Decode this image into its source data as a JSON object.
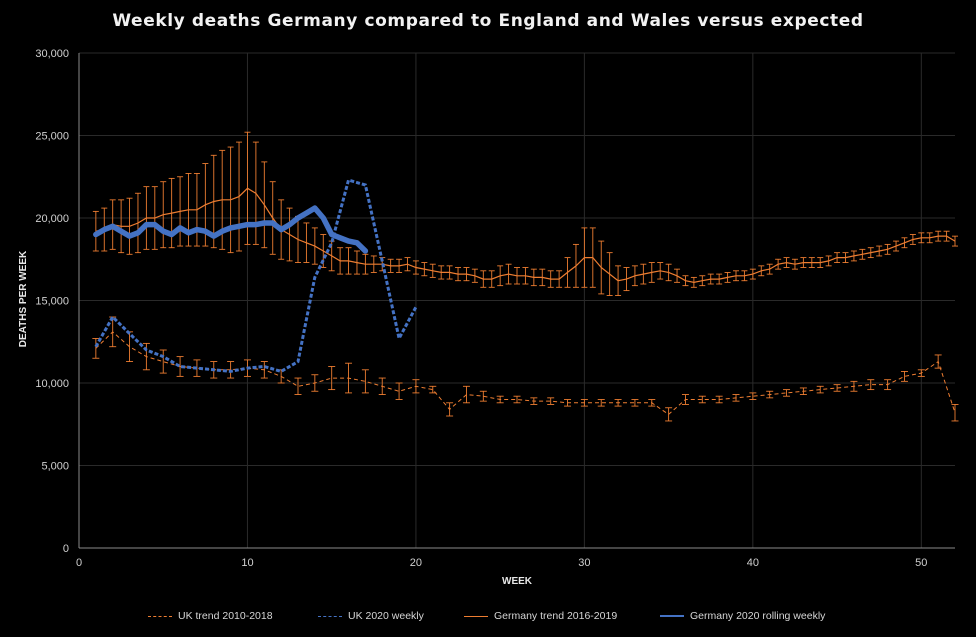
{
  "chart_data": {
    "type": "line",
    "title": "Weekly deaths Germany compared to England and Wales versus expected",
    "xlabel": "WEEK",
    "ylabel": "DEATHS PER WEEK",
    "xlim": [
      0,
      52
    ],
    "ylim": [
      0,
      30000
    ],
    "x_ticks": [
      0,
      10,
      20,
      30,
      40,
      50
    ],
    "y_ticks": [
      0,
      5000,
      10000,
      15000,
      20000,
      25000,
      30000
    ],
    "y_tick_labels": [
      "0",
      "5,000",
      "10,000",
      "15,000",
      "20,000",
      "25,000",
      "30,000"
    ],
    "grid": true,
    "legend_position": "bottom",
    "colors": {
      "uk_trend": "#ed7d31",
      "uk_2020": "#4472c4",
      "germany_trend": "#ed7d31",
      "germany_2020": "#4472c4",
      "grid": "#2a2a2a",
      "axis": "#8a8a8a"
    },
    "series": [
      {
        "name": "UK trend 2010-2018",
        "style": "dashed",
        "x": [
          1,
          2,
          3,
          4,
          5,
          6,
          7,
          8,
          9,
          10,
          11,
          12,
          13,
          14,
          15,
          16,
          17,
          18,
          19,
          20,
          21,
          22,
          23,
          24,
          25,
          26,
          27,
          28,
          29,
          30,
          31,
          32,
          33,
          34,
          35,
          36,
          37,
          38,
          39,
          40,
          41,
          42,
          43,
          44,
          45,
          46,
          47,
          48,
          49,
          50,
          51,
          52
        ],
        "values": [
          12100,
          13100,
          12200,
          11600,
          11300,
          11000,
          10900,
          10800,
          10800,
          10900,
          10800,
          10400,
          9800,
          10000,
          10300,
          10300,
          10100,
          9800,
          9500,
          9800,
          9600,
          8400,
          9300,
          9200,
          9000,
          9000,
          8900,
          8900,
          8800,
          8800,
          8800,
          8800,
          8800,
          8800,
          8100,
          9000,
          9000,
          9000,
          9100,
          9200,
          9300,
          9400,
          9500,
          9600,
          9700,
          9800,
          9900,
          9900,
          10400,
          10600,
          11300,
          8200
        ],
        "error": [
          600,
          900,
          900,
          800,
          700,
          600,
          500,
          500,
          500,
          500,
          500,
          400,
          500,
          500,
          700,
          900,
          700,
          500,
          500,
          400,
          200,
          400,
          500,
          300,
          200,
          200,
          200,
          200,
          200,
          200,
          200,
          200,
          200,
          200,
          400,
          300,
          200,
          200,
          200,
          200,
          200,
          200,
          200,
          200,
          200,
          300,
          300,
          300,
          300,
          200,
          400,
          500
        ]
      },
      {
        "name": "UK 2020 weekly",
        "style": "dashed",
        "x": [
          1,
          2,
          3,
          4,
          5,
          6,
          7,
          8,
          9,
          10,
          11,
          12,
          13,
          14,
          15,
          16,
          17,
          18,
          19,
          20
        ],
        "values": [
          12200,
          14000,
          13000,
          12000,
          11600,
          11000,
          10900,
          10800,
          10700,
          10900,
          11000,
          10700,
          11300,
          16400,
          18500,
          22300,
          22000,
          17400,
          12700,
          14600
        ]
      },
      {
        "name": "Germany trend 2016-2019",
        "style": "solid",
        "x": [
          1,
          1.5,
          2,
          2.5,
          3,
          3.5,
          4,
          4.5,
          5,
          5.5,
          6,
          6.5,
          7,
          7.5,
          8,
          8.5,
          9,
          9.5,
          10,
          10.5,
          11,
          11.5,
          12,
          12.5,
          13,
          13.5,
          14,
          14.5,
          15,
          15.5,
          16,
          16.5,
          17,
          17.5,
          18,
          18.5,
          19,
          19.5,
          20,
          20.5,
          21,
          21.5,
          22,
          22.5,
          23,
          23.5,
          24,
          24.5,
          25,
          25.5,
          26,
          26.5,
          27,
          27.5,
          28,
          28.5,
          29,
          29.5,
          30,
          30.5,
          31,
          31.5,
          32,
          32.5,
          33,
          33.5,
          34,
          34.5,
          35,
          35.5,
          36,
          36.5,
          37,
          37.5,
          38,
          38.5,
          39,
          39.5,
          40,
          40.5,
          41,
          41.5,
          42,
          42.5,
          43,
          43.5,
          44,
          44.5,
          45,
          45.5,
          46,
          46.5,
          47,
          47.5,
          48,
          48.5,
          49,
          49.5,
          50,
          50.5,
          51,
          51.5,
          52
        ],
        "values": [
          19200,
          19300,
          19600,
          19500,
          19500,
          19700,
          20000,
          20000,
          20200,
          20300,
          20400,
          20500,
          20500,
          20800,
          21000,
          21100,
          21100,
          21300,
          21800,
          21500,
          20800,
          20000,
          19300,
          19000,
          18700,
          18500,
          18300,
          18000,
          17700,
          17400,
          17400,
          17300,
          17200,
          17200,
          17200,
          17100,
          17100,
          17200,
          17000,
          16900,
          16800,
          16700,
          16700,
          16600,
          16600,
          16500,
          16300,
          16300,
          16500,
          16600,
          16500,
          16500,
          16400,
          16400,
          16300,
          16300,
          16700,
          17100,
          17600,
          17600,
          17000,
          16600,
          16200,
          16300,
          16500,
          16600,
          16700,
          16800,
          16700,
          16500,
          16200,
          16100,
          16200,
          16300,
          16300,
          16400,
          16500,
          16500,
          16600,
          16800,
          16900,
          17200,
          17300,
          17200,
          17300,
          17300,
          17300,
          17400,
          17600,
          17600,
          17700,
          17800,
          17900,
          18000,
          18100,
          18300,
          18500,
          18700,
          18800,
          18800,
          18900,
          18900,
          18600
        ],
        "error": [
          1200,
          1300,
          1500,
          1600,
          1700,
          1800,
          1900,
          1900,
          2000,
          2100,
          2100,
          2200,
          2200,
          2500,
          2800,
          3000,
          3200,
          3300,
          3400,
          3100,
          2600,
          2200,
          1800,
          1600,
          1400,
          1200,
          1100,
          1000,
          900,
          800,
          800,
          700,
          600,
          500,
          400,
          400,
          400,
          400,
          400,
          400,
          400,
          400,
          400,
          400,
          400,
          400,
          500,
          500,
          600,
          600,
          500,
          500,
          500,
          500,
          500,
          500,
          900,
          1300,
          1800,
          1800,
          1600,
          1300,
          900,
          700,
          600,
          600,
          600,
          500,
          500,
          400,
          300,
          300,
          300,
          300,
          300,
          300,
          300,
          300,
          300,
          300,
          300,
          300,
          300,
          300,
          300,
          300,
          300,
          300,
          300,
          300,
          300,
          300,
          300,
          300,
          300,
          300,
          300,
          300,
          300,
          300,
          300,
          300,
          300
        ]
      },
      {
        "name": "Germany 2020 rolling weekly",
        "style": "solid",
        "x": [
          1,
          1.5,
          2,
          2.5,
          3,
          3.5,
          4,
          4.5,
          5,
          5.5,
          6,
          6.5,
          7,
          7.5,
          8,
          8.5,
          9,
          9.5,
          10,
          10.5,
          11,
          11.5,
          12,
          12.5,
          13,
          13.5,
          14,
          14.5,
          15,
          15.5,
          16,
          16.5,
          17
        ],
        "values": [
          19000,
          19300,
          19500,
          19200,
          18900,
          19100,
          19600,
          19600,
          19200,
          19000,
          19400,
          19100,
          19300,
          19200,
          18900,
          19200,
          19400,
          19500,
          19600,
          19600,
          19700,
          19700,
          19300,
          19600,
          20000,
          20300,
          20600,
          20000,
          19000,
          18800,
          18600,
          18500,
          18000
        ]
      }
    ]
  }
}
